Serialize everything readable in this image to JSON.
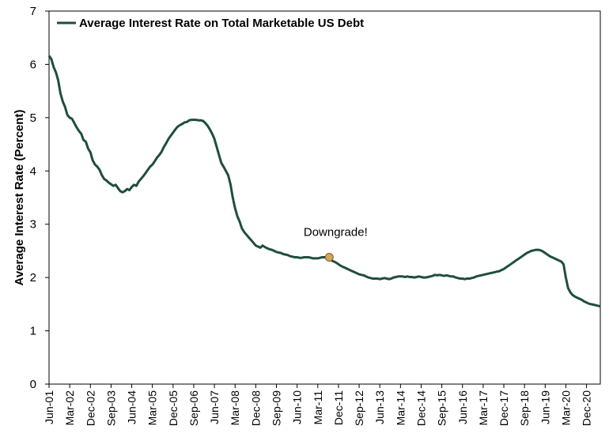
{
  "chart_data": {
    "type": "line",
    "ylabel": "Average Interest Rate (Percent)",
    "xlabel": "",
    "ylim": [
      0,
      7
    ],
    "yticks": [
      "0",
      "1",
      "2",
      "3",
      "4",
      "5",
      "6",
      "7"
    ],
    "x_tick_labels": [
      "Jun-01",
      "Mar-02",
      "Dec-02",
      "Sep-03",
      "Jun-04",
      "Mar-05",
      "Dec-05",
      "Sep-06",
      "Jun-07",
      "Mar-08",
      "Dec-08",
      "Sep-09",
      "Jun-10",
      "Mar-11",
      "Dec-11",
      "Sep-12",
      "Jun-13",
      "Mar-14",
      "Dec-14",
      "Sep-15",
      "Jun-16",
      "Mar-17",
      "Dec-17",
      "Sep-18",
      "Jun-19",
      "Mar-20",
      "Dec-20"
    ],
    "grid": false,
    "legend_position": "top-left",
    "series": [
      {
        "name": "Average Interest Rate on Total Marketable US Debt",
        "color": "#1f4e3d",
        "points": [
          [
            "2001-06",
            6.16
          ],
          [
            "2001-07",
            6.1
          ],
          [
            "2001-08",
            5.95
          ],
          [
            "2001-09",
            5.85
          ],
          [
            "2001-10",
            5.7
          ],
          [
            "2001-11",
            5.45
          ],
          [
            "2001-12",
            5.3
          ],
          [
            "2002-01",
            5.2
          ],
          [
            "2002-02",
            5.05
          ],
          [
            "2002-03",
            5.0
          ],
          [
            "2002-04",
            4.98
          ],
          [
            "2002-05",
            4.9
          ],
          [
            "2002-06",
            4.82
          ],
          [
            "2002-07",
            4.75
          ],
          [
            "2002-08",
            4.7
          ],
          [
            "2002-09",
            4.58
          ],
          [
            "2002-10",
            4.55
          ],
          [
            "2002-11",
            4.42
          ],
          [
            "2002-12",
            4.35
          ],
          [
            "2003-01",
            4.2
          ],
          [
            "2003-02",
            4.12
          ],
          [
            "2003-03",
            4.08
          ],
          [
            "2003-04",
            4.02
          ],
          [
            "2003-05",
            3.92
          ],
          [
            "2003-06",
            3.85
          ],
          [
            "2003-07",
            3.82
          ],
          [
            "2003-08",
            3.78
          ],
          [
            "2003-09",
            3.75
          ],
          [
            "2003-10",
            3.72
          ],
          [
            "2003-11",
            3.74
          ],
          [
            "2003-12",
            3.68
          ],
          [
            "2004-01",
            3.62
          ],
          [
            "2004-02",
            3.6
          ],
          [
            "2004-03",
            3.62
          ],
          [
            "2004-04",
            3.66
          ],
          [
            "2004-05",
            3.64
          ],
          [
            "2004-06",
            3.7
          ],
          [
            "2004-07",
            3.74
          ],
          [
            "2004-08",
            3.72
          ],
          [
            "2004-09",
            3.8
          ],
          [
            "2004-10",
            3.85
          ],
          [
            "2004-11",
            3.9
          ],
          [
            "2004-12",
            3.96
          ],
          [
            "2005-01",
            4.02
          ],
          [
            "2005-02",
            4.08
          ],
          [
            "2005-03",
            4.12
          ],
          [
            "2005-04",
            4.18
          ],
          [
            "2005-05",
            4.25
          ],
          [
            "2005-06",
            4.3
          ],
          [
            "2005-07",
            4.36
          ],
          [
            "2005-08",
            4.45
          ],
          [
            "2005-09",
            4.52
          ],
          [
            "2005-10",
            4.6
          ],
          [
            "2005-11",
            4.66
          ],
          [
            "2005-12",
            4.72
          ],
          [
            "2006-01",
            4.78
          ],
          [
            "2006-02",
            4.83
          ],
          [
            "2006-03",
            4.86
          ],
          [
            "2006-04",
            4.88
          ],
          [
            "2006-05",
            4.91
          ],
          [
            "2006-06",
            4.92
          ],
          [
            "2006-07",
            4.95
          ],
          [
            "2006-08",
            4.96
          ],
          [
            "2006-09",
            4.96
          ],
          [
            "2006-10",
            4.96
          ],
          [
            "2006-11",
            4.95
          ],
          [
            "2006-12",
            4.95
          ],
          [
            "2007-01",
            4.94
          ],
          [
            "2007-02",
            4.9
          ],
          [
            "2007-03",
            4.85
          ],
          [
            "2007-04",
            4.78
          ],
          [
            "2007-05",
            4.7
          ],
          [
            "2007-06",
            4.6
          ],
          [
            "2007-07",
            4.45
          ],
          [
            "2007-08",
            4.3
          ],
          [
            "2007-09",
            4.15
          ],
          [
            "2007-10",
            4.08
          ],
          [
            "2007-11",
            4.0
          ],
          [
            "2007-12",
            3.92
          ],
          [
            "2008-01",
            3.75
          ],
          [
            "2008-02",
            3.5
          ],
          [
            "2008-03",
            3.3
          ],
          [
            "2008-04",
            3.15
          ],
          [
            "2008-05",
            3.05
          ],
          [
            "2008-06",
            2.92
          ],
          [
            "2008-07",
            2.85
          ],
          [
            "2008-08",
            2.8
          ],
          [
            "2008-09",
            2.75
          ],
          [
            "2008-10",
            2.7
          ],
          [
            "2008-11",
            2.65
          ],
          [
            "2008-12",
            2.6
          ],
          [
            "2009-01",
            2.58
          ],
          [
            "2009-02",
            2.56
          ],
          [
            "2009-03",
            2.6
          ],
          [
            "2009-04",
            2.57
          ],
          [
            "2009-05",
            2.55
          ],
          [
            "2009-06",
            2.53
          ],
          [
            "2009-07",
            2.52
          ],
          [
            "2009-08",
            2.5
          ],
          [
            "2009-09",
            2.48
          ],
          [
            "2009-10",
            2.47
          ],
          [
            "2009-11",
            2.46
          ],
          [
            "2009-12",
            2.44
          ],
          [
            "2010-01",
            2.43
          ],
          [
            "2010-02",
            2.42
          ],
          [
            "2010-03",
            2.4
          ],
          [
            "2010-04",
            2.39
          ],
          [
            "2010-05",
            2.38
          ],
          [
            "2010-06",
            2.38
          ],
          [
            "2010-07",
            2.37
          ],
          [
            "2010-08",
            2.37
          ],
          [
            "2010-09",
            2.38
          ],
          [
            "2010-10",
            2.38
          ],
          [
            "2010-11",
            2.38
          ],
          [
            "2010-12",
            2.37
          ],
          [
            "2011-01",
            2.36
          ],
          [
            "2011-02",
            2.36
          ],
          [
            "2011-03",
            2.36
          ],
          [
            "2011-04",
            2.37
          ],
          [
            "2011-05",
            2.38
          ],
          [
            "2011-06",
            2.38
          ],
          [
            "2011-07",
            2.37
          ],
          [
            "2011-08",
            2.38
          ],
          [
            "2011-09",
            2.32
          ],
          [
            "2011-10",
            2.3
          ],
          [
            "2011-11",
            2.28
          ],
          [
            "2011-12",
            2.25
          ],
          [
            "2012-01",
            2.22
          ],
          [
            "2012-02",
            2.2
          ],
          [
            "2012-03",
            2.18
          ],
          [
            "2012-04",
            2.16
          ],
          [
            "2012-05",
            2.14
          ],
          [
            "2012-06",
            2.12
          ],
          [
            "2012-07",
            2.1
          ],
          [
            "2012-08",
            2.08
          ],
          [
            "2012-09",
            2.06
          ],
          [
            "2012-10",
            2.05
          ],
          [
            "2012-11",
            2.04
          ],
          [
            "2012-12",
            2.02
          ],
          [
            "2013-01",
            2.0
          ],
          [
            "2013-02",
            1.99
          ],
          [
            "2013-03",
            1.98
          ],
          [
            "2013-04",
            1.98
          ],
          [
            "2013-05",
            1.98
          ],
          [
            "2013-06",
            1.97
          ],
          [
            "2013-07",
            1.98
          ],
          [
            "2013-08",
            1.99
          ],
          [
            "2013-09",
            1.98
          ],
          [
            "2013-10",
            1.97
          ],
          [
            "2013-11",
            1.98
          ],
          [
            "2013-12",
            2.0
          ],
          [
            "2014-01",
            2.01
          ],
          [
            "2014-02",
            2.02
          ],
          [
            "2014-03",
            2.02
          ],
          [
            "2014-04",
            2.02
          ],
          [
            "2014-05",
            2.01
          ],
          [
            "2014-06",
            2.02
          ],
          [
            "2014-07",
            2.01
          ],
          [
            "2014-08",
            2.01
          ],
          [
            "2014-09",
            2.0
          ],
          [
            "2014-10",
            2.01
          ],
          [
            "2014-11",
            2.02
          ],
          [
            "2014-12",
            2.01
          ],
          [
            "2015-01",
            2.0
          ],
          [
            "2015-02",
            2.0
          ],
          [
            "2015-03",
            2.01
          ],
          [
            "2015-04",
            2.02
          ],
          [
            "2015-05",
            2.03
          ],
          [
            "2015-06",
            2.05
          ],
          [
            "2015-07",
            2.04
          ],
          [
            "2015-08",
            2.05
          ],
          [
            "2015-09",
            2.04
          ],
          [
            "2015-10",
            2.03
          ],
          [
            "2015-11",
            2.04
          ],
          [
            "2015-12",
            2.03
          ],
          [
            "2016-01",
            2.02
          ],
          [
            "2016-02",
            2.02
          ],
          [
            "2016-03",
            2.0
          ],
          [
            "2016-04",
            1.99
          ],
          [
            "2016-05",
            1.98
          ],
          [
            "2016-06",
            1.98
          ],
          [
            "2016-07",
            1.97
          ],
          [
            "2016-08",
            1.98
          ],
          [
            "2016-09",
            1.98
          ],
          [
            "2016-10",
            1.99
          ],
          [
            "2016-11",
            2.0
          ],
          [
            "2016-12",
            2.02
          ],
          [
            "2017-01",
            2.03
          ],
          [
            "2017-02",
            2.04
          ],
          [
            "2017-03",
            2.05
          ],
          [
            "2017-04",
            2.06
          ],
          [
            "2017-05",
            2.07
          ],
          [
            "2017-06",
            2.08
          ],
          [
            "2017-07",
            2.09
          ],
          [
            "2017-08",
            2.1
          ],
          [
            "2017-09",
            2.11
          ],
          [
            "2017-10",
            2.12
          ],
          [
            "2017-11",
            2.14
          ],
          [
            "2017-12",
            2.16
          ],
          [
            "2018-01",
            2.19
          ],
          [
            "2018-02",
            2.22
          ],
          [
            "2018-03",
            2.25
          ],
          [
            "2018-04",
            2.28
          ],
          [
            "2018-05",
            2.31
          ],
          [
            "2018-06",
            2.34
          ],
          [
            "2018-07",
            2.37
          ],
          [
            "2018-08",
            2.4
          ],
          [
            "2018-09",
            2.43
          ],
          [
            "2018-10",
            2.46
          ],
          [
            "2018-11",
            2.48
          ],
          [
            "2018-12",
            2.5
          ],
          [
            "2019-01",
            2.51
          ],
          [
            "2019-02",
            2.52
          ],
          [
            "2019-03",
            2.52
          ],
          [
            "2019-04",
            2.51
          ],
          [
            "2019-05",
            2.49
          ],
          [
            "2019-06",
            2.46
          ],
          [
            "2019-07",
            2.43
          ],
          [
            "2019-08",
            2.4
          ],
          [
            "2019-09",
            2.38
          ],
          [
            "2019-10",
            2.36
          ],
          [
            "2019-11",
            2.34
          ],
          [
            "2019-12",
            2.32
          ],
          [
            "2020-01",
            2.3
          ],
          [
            "2020-02",
            2.25
          ],
          [
            "2020-03",
            2.0
          ],
          [
            "2020-04",
            1.8
          ],
          [
            "2020-05",
            1.72
          ],
          [
            "2020-06",
            1.67
          ],
          [
            "2020-07",
            1.64
          ],
          [
            "2020-08",
            1.62
          ],
          [
            "2020-09",
            1.6
          ],
          [
            "2020-10",
            1.58
          ],
          [
            "2020-11",
            1.55
          ],
          [
            "2020-12",
            1.53
          ],
          [
            "2021-01",
            1.51
          ],
          [
            "2021-02",
            1.5
          ],
          [
            "2021-03",
            1.49
          ],
          [
            "2021-04",
            1.48
          ],
          [
            "2021-05",
            1.47
          ],
          [
            "2021-06",
            1.46
          ]
        ]
      }
    ],
    "annotations": [
      {
        "text": "Downgrade!",
        "x": "2011-08",
        "y": 2.38,
        "marker_color": "#d4a55a"
      }
    ]
  }
}
